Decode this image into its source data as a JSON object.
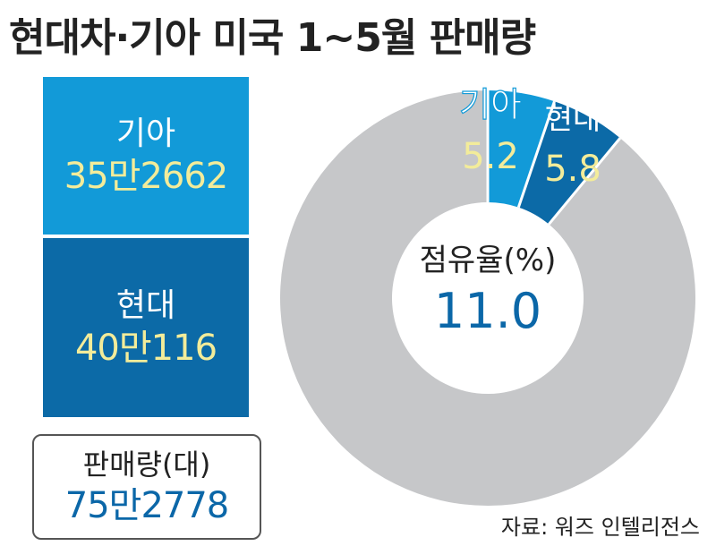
{
  "title": "현대차·기아 미국 1~5월 판매량",
  "colors": {
    "kia": "#129ad8",
    "hyundai": "#0c6aa7",
    "rest": "#c6c7c9",
    "value_text": "#f3ec9a",
    "accent_blue": "#0b67a8"
  },
  "stack": {
    "kia": {
      "label": "기아",
      "value_text": "35만2662"
    },
    "hyundai": {
      "label": "현대",
      "value_text": "40만116"
    },
    "total": {
      "label": "판매량(대)",
      "value_text": "75만2778"
    }
  },
  "chart_data": [
    {
      "type": "bar",
      "categories": [
        "기아",
        "현대"
      ],
      "values": [
        352662,
        400116
      ],
      "total": 752778,
      "ylabel": "판매량(대)"
    },
    {
      "type": "pie",
      "center_label": "점유율(%)",
      "center_value": "11.0",
      "slices": [
        {
          "name": "기아",
          "value": 5.2
        },
        {
          "name": "현대",
          "value": 5.8
        },
        {
          "name": "",
          "value": 89.0
        }
      ]
    }
  ],
  "source": "자료: 워즈 인텔리전스"
}
